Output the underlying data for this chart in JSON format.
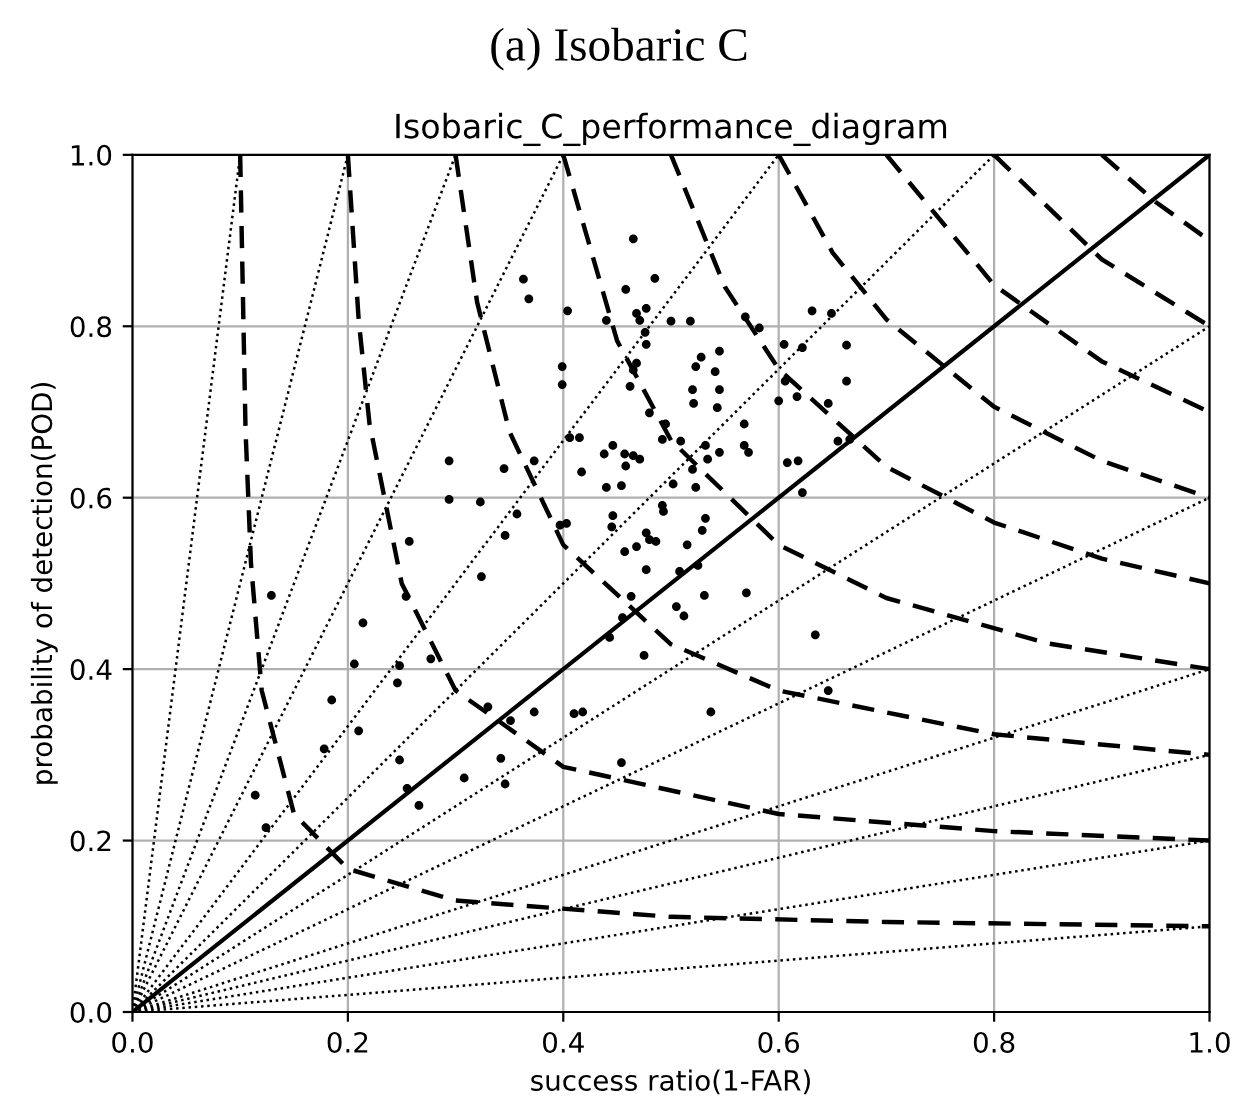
{
  "chart_data": {
    "type": "scatter",
    "title": "Isobaric_C_performance_diagram",
    "xlabel": "success ratio(1-FAR)",
    "ylabel": "probability of detection(POD)",
    "annotations": [
      "(a) Isobaric C"
    ],
    "xlim": [
      0,
      1
    ],
    "ylim": [
      0,
      1
    ],
    "xticks": [
      {
        "value": 0,
        "label": "0.0"
      },
      {
        "value": 0.2,
        "label": "0.2"
      },
      {
        "value": 0.4,
        "label": "0.4"
      },
      {
        "value": 0.6,
        "label": "0.6"
      },
      {
        "value": 0.8,
        "label": "0.8"
      },
      {
        "value": 1,
        "label": "1.0"
      }
    ],
    "yticks": [
      {
        "value": 0,
        "label": "0.0"
      },
      {
        "value": 0.2,
        "label": "0.2"
      },
      {
        "value": 0.4,
        "label": "0.4"
      },
      {
        "value": 0.6,
        "label": "0.6"
      },
      {
        "value": 0.8,
        "label": "0.8"
      },
      {
        "value": 1,
        "label": "1.0"
      }
    ],
    "grid": true,
    "series": [
      {
        "type": "line",
        "line_style": "dashed",
        "color": "#000000",
        "x": [
          0.1,
          0.105,
          0.11,
          0.12,
          0.15,
          0.2,
          0.3,
          0.5,
          0.7,
          1.0
        ],
        "values": [
          1.0,
          0.678,
          0.524,
          0.375,
          0.231,
          0.167,
          0.13,
          0.111,
          0.105,
          0.1
        ]
      },
      {
        "type": "line",
        "line_style": "dashed",
        "color": "#000000",
        "x": [
          0.2,
          0.21,
          0.22,
          0.25,
          0.3,
          0.4,
          0.6,
          0.8,
          1.0
        ],
        "values": [
          1.0,
          0.808,
          0.687,
          0.5,
          0.375,
          0.286,
          0.231,
          0.211,
          0.2
        ]
      },
      {
        "type": "line",
        "line_style": "dashed",
        "color": "#000000",
        "x": [
          0.3,
          0.32,
          0.35,
          0.4,
          0.5,
          0.6,
          0.8,
          1.0
        ],
        "values": [
          1.0,
          0.828,
          0.677,
          0.545,
          0.429,
          0.375,
          0.324,
          0.3
        ]
      },
      {
        "type": "line",
        "line_style": "dashed",
        "color": "#000000",
        "x": [
          0.4,
          0.45,
          0.5,
          0.6,
          0.7,
          0.85,
          1.0
        ],
        "values": [
          1.0,
          0.783,
          0.667,
          0.545,
          0.483,
          0.43,
          0.4
        ]
      },
      {
        "type": "line",
        "line_style": "dashed",
        "color": "#000000",
        "x": [
          0.5,
          0.55,
          0.6,
          0.7,
          0.8,
          0.9,
          1.0
        ],
        "values": [
          1.0,
          0.846,
          0.75,
          0.636,
          0.571,
          0.529,
          0.5
        ]
      },
      {
        "type": "line",
        "line_style": "dashed",
        "color": "#000000",
        "x": [
          0.6,
          0.65,
          0.7,
          0.8,
          0.9,
          1.0
        ],
        "values": [
          1.0,
          0.886,
          0.808,
          0.706,
          0.643,
          0.6
        ]
      },
      {
        "type": "line",
        "line_style": "dashed",
        "color": "#000000",
        "x": [
          0.7,
          0.8,
          0.9,
          1.0
        ],
        "values": [
          1.0,
          0.848,
          0.759,
          0.7
        ]
      },
      {
        "type": "line",
        "line_style": "dashed",
        "color": "#000000",
        "x": [
          0.8,
          0.9,
          1.0
        ],
        "values": [
          1.0,
          0.878,
          0.8
        ]
      },
      {
        "type": "line",
        "line_style": "dashed",
        "color": "#000000",
        "x": [
          0.9,
          0.95,
          1.0
        ],
        "values": [
          1.0,
          0.945,
          0.9
        ]
      },
      {
        "type": "line",
        "line_style": "dotted",
        "color": "#000000",
        "x": [
          0,
          0.1
        ],
        "values": [
          0,
          1
        ]
      },
      {
        "type": "line",
        "line_style": "dotted",
        "color": "#000000",
        "x": [
          0,
          0.2
        ],
        "values": [
          0,
          1
        ]
      },
      {
        "type": "line",
        "line_style": "dotted",
        "color": "#000000",
        "x": [
          0,
          0.3
        ],
        "values": [
          0,
          1
        ]
      },
      {
        "type": "line",
        "line_style": "dotted",
        "color": "#000000",
        "x": [
          0,
          0.4
        ],
        "values": [
          0,
          1
        ]
      },
      {
        "type": "line",
        "line_style": "dotted",
        "color": "#000000",
        "x": [
          0,
          0.6
        ],
        "values": [
          0,
          1
        ]
      },
      {
        "type": "line",
        "line_style": "dotted",
        "color": "#000000",
        "x": [
          0,
          0.8
        ],
        "values": [
          0,
          1
        ]
      },
      {
        "type": "line",
        "line_style": "solid",
        "color": "#000000",
        "x": [
          0,
          1
        ],
        "values": [
          0,
          1
        ]
      },
      {
        "type": "line",
        "line_style": "dotted",
        "color": "#000000",
        "x": [
          0,
          1
        ],
        "values": [
          0,
          0.8
        ]
      },
      {
        "type": "line",
        "line_style": "dotted",
        "color": "#000000",
        "x": [
          0,
          1
        ],
        "values": [
          0,
          0.6
        ]
      },
      {
        "type": "line",
        "line_style": "dotted",
        "color": "#000000",
        "x": [
          0,
          1
        ],
        "values": [
          0,
          0.4
        ]
      },
      {
        "type": "line",
        "line_style": "dotted",
        "color": "#000000",
        "x": [
          0,
          1
        ],
        "values": [
          0,
          0.3
        ]
      },
      {
        "type": "line",
        "line_style": "dotted",
        "color": "#000000",
        "x": [
          0,
          1
        ],
        "values": [
          0,
          0.2
        ]
      },
      {
        "type": "line",
        "line_style": "dotted",
        "color": "#000000",
        "x": [
          0,
          1
        ],
        "values": [
          0,
          0.1
        ]
      },
      {
        "marker": "circle",
        "color": "#000000",
        "x": [
          0.363,
          0.368,
          0.294,
          0.345,
          0.373,
          0.465,
          0.485,
          0.458,
          0.404,
          0.44,
          0.468,
          0.477,
          0.471,
          0.5,
          0.518,
          0.476,
          0.477,
          0.631,
          0.649,
          0.569,
          0.582,
          0.605,
          0.622,
          0.663,
          0.663,
          0.606,
          0.6,
          0.617,
          0.646,
          0.545,
          0.528,
          0.523,
          0.541,
          0.52,
          0.545,
          0.521,
          0.543,
          0.468,
          0.465,
          0.462,
          0.399,
          0.399,
          0.48,
          0.495,
          0.492,
          0.509,
          0.568,
          0.568,
          0.532,
          0.545,
          0.534,
          0.572,
          0.406,
          0.415,
          0.438,
          0.446,
          0.457,
          0.465,
          0.471,
          0.417,
          0.458,
          0.454,
          0.44,
          0.502,
          0.52,
          0.523,
          0.655,
          0.666,
          0.608,
          0.618,
          0.622,
          0.403,
          0.397,
          0.446,
          0.445,
          0.492,
          0.493,
          0.532,
          0.529,
          0.477,
          0.48,
          0.468,
          0.457,
          0.486,
          0.515,
          0.477,
          0.525,
          0.508,
          0.463,
          0.531,
          0.57,
          0.505,
          0.512,
          0.455,
          0.443,
          0.475,
          0.634,
          0.646,
          0.537,
          0.41,
          0.418,
          0.454,
          0.294,
          0.323,
          0.357,
          0.346,
          0.257,
          0.324,
          0.129,
          0.254,
          0.214,
          0.206,
          0.248,
          0.246,
          0.277,
          0.185,
          0.21,
          0.33,
          0.351,
          0.373,
          0.178,
          0.248,
          0.342,
          0.308,
          0.346,
          0.255,
          0.266,
          0.114,
          0.124
        ],
        "values": [
          0.855,
          0.832,
          0.643,
          0.634,
          0.643,
          0.902,
          0.856,
          0.843,
          0.818,
          0.807,
          0.815,
          0.821,
          0.807,
          0.806,
          0.806,
          0.793,
          0.779,
          0.818,
          0.815,
          0.811,
          0.798,
          0.779,
          0.775,
          0.778,
          0.736,
          0.736,
          0.713,
          0.718,
          0.71,
          0.771,
          0.764,
          0.753,
          0.747,
          0.726,
          0.726,
          0.71,
          0.705,
          0.757,
          0.749,
          0.73,
          0.753,
          0.732,
          0.699,
          0.686,
          0.668,
          0.666,
          0.686,
          0.661,
          0.661,
          0.653,
          0.645,
          0.653,
          0.67,
          0.67,
          0.651,
          0.661,
          0.651,
          0.649,
          0.645,
          0.63,
          0.637,
          0.614,
          0.612,
          0.616,
          0.633,
          0.612,
          0.666,
          0.668,
          0.641,
          0.643,
          0.606,
          0.57,
          0.568,
          0.579,
          0.566,
          0.591,
          0.584,
          0.576,
          0.562,
          0.559,
          0.551,
          0.543,
          0.537,
          0.549,
          0.545,
          0.516,
          0.521,
          0.514,
          0.485,
          0.486,
          0.489,
          0.473,
          0.462,
          0.46,
          0.437,
          0.416,
          0.44,
          0.375,
          0.35,
          0.348,
          0.35,
          0.291,
          0.598,
          0.595,
          0.581,
          0.556,
          0.549,
          0.508,
          0.486,
          0.485,
          0.454,
          0.406,
          0.404,
          0.384,
          0.412,
          0.364,
          0.328,
          0.356,
          0.34,
          0.35,
          0.307,
          0.294,
          0.296,
          0.273,
          0.266,
          0.261,
          0.241,
          0.253,
          0.215
        ]
      }
    ]
  }
}
